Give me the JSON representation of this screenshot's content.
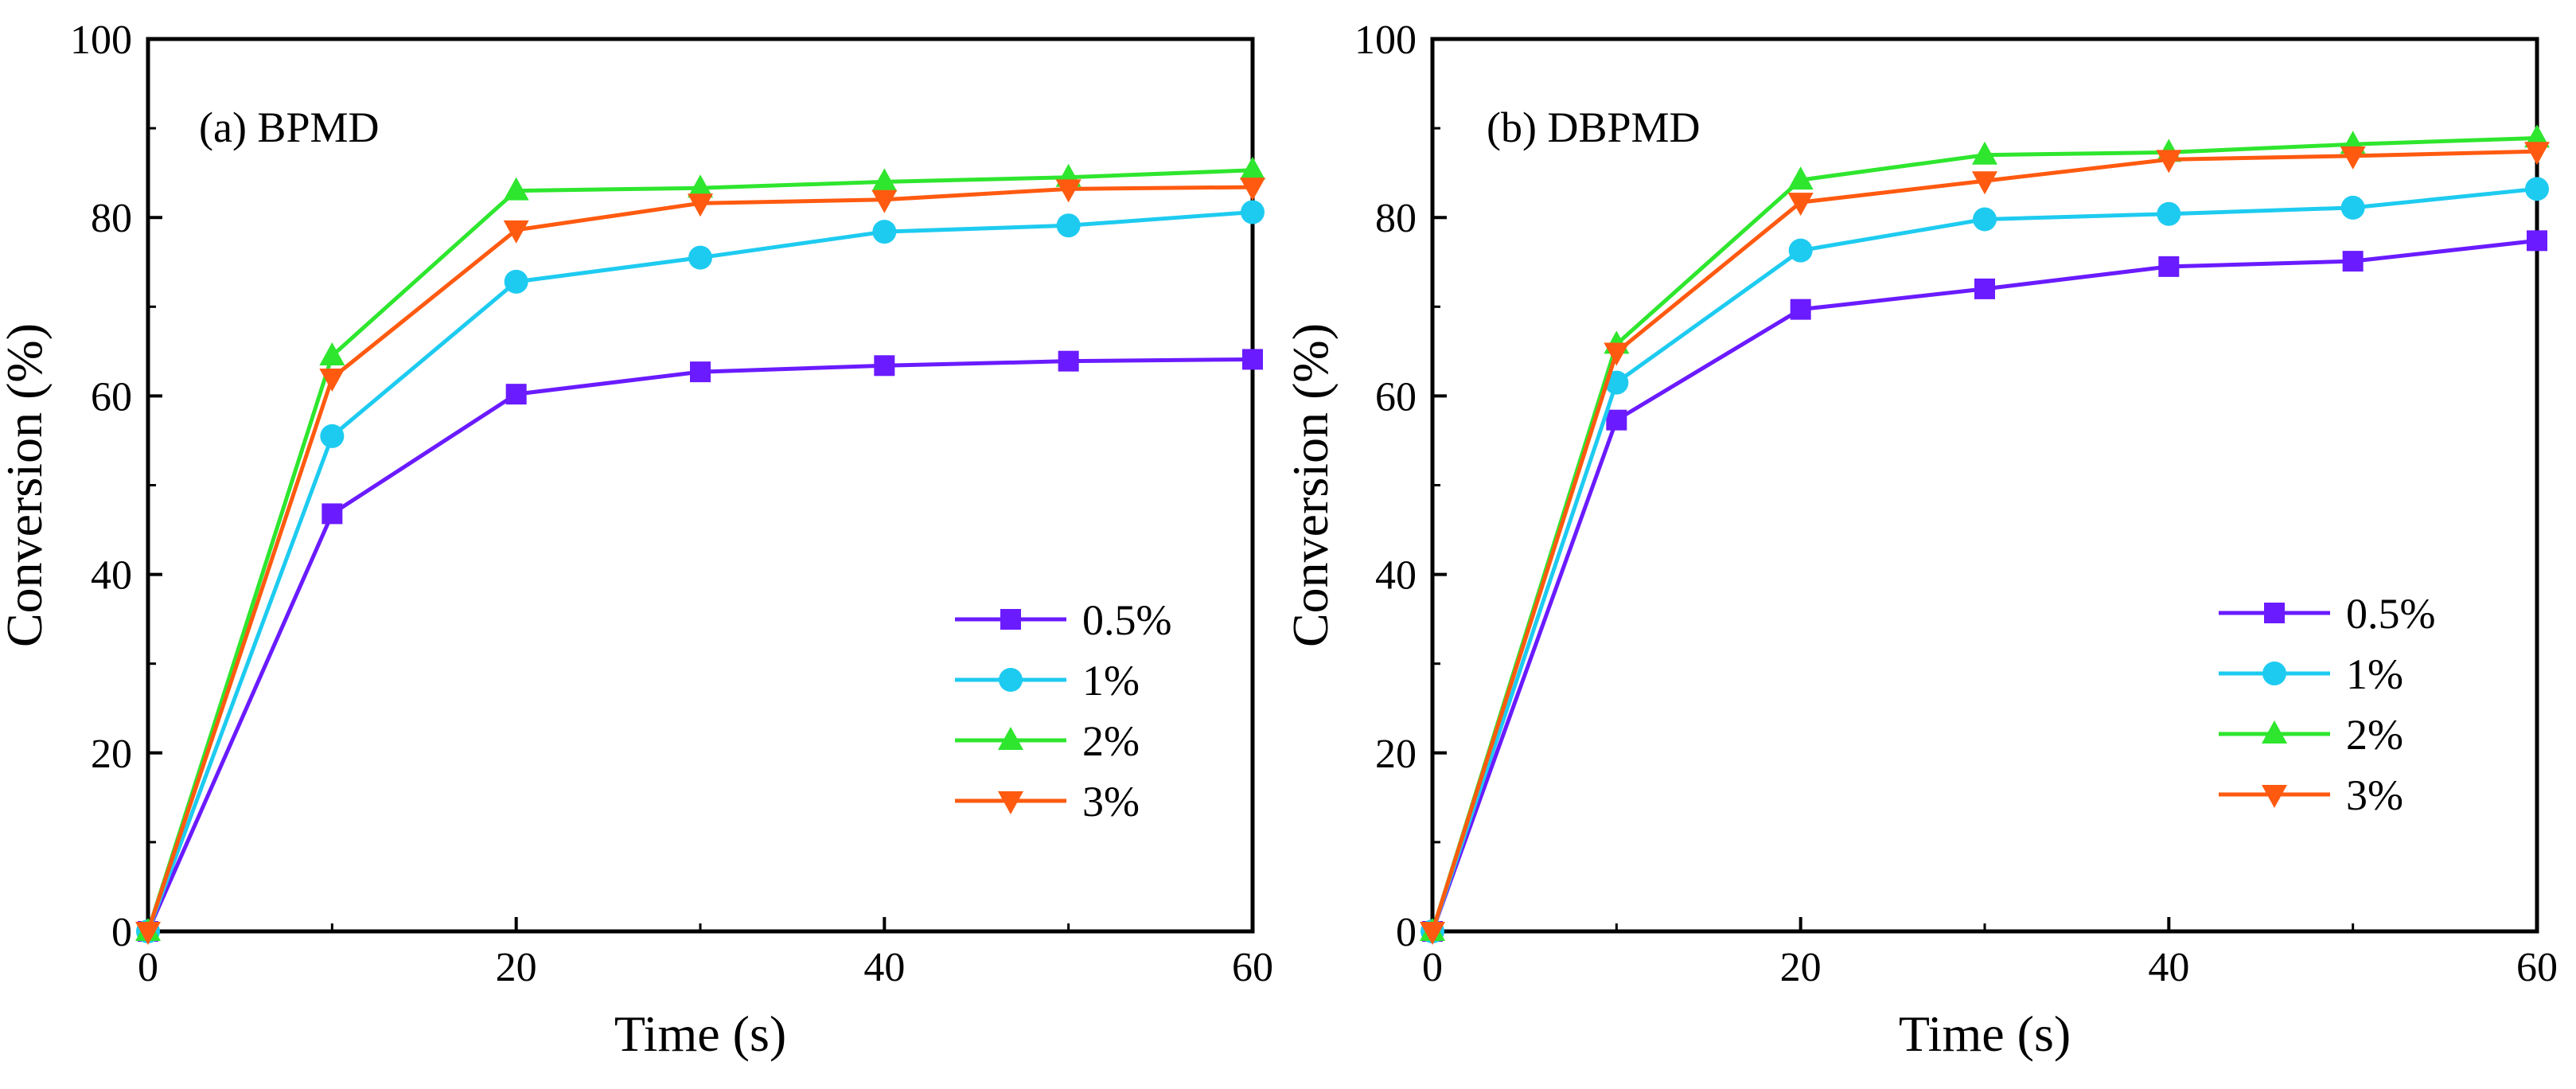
{
  "chart_data": [
    {
      "type": "line",
      "panel_label": "(a) BPMD",
      "xlabel": "Time (s)",
      "ylabel": "Conversion (%)",
      "xlim": [
        0,
        60
      ],
      "ylim": [
        0,
        100
      ],
      "xticks": [
        0,
        20,
        40,
        60
      ],
      "yticks": [
        0,
        20,
        40,
        60,
        80,
        100
      ],
      "legend_position": "bottom-right",
      "x": [
        0,
        10,
        20,
        30,
        40,
        50,
        60
      ],
      "series": [
        {
          "name": "0.5%",
          "color": "#6a1bff",
          "marker": "square",
          "values": [
            0,
            46.8,
            60.2,
            62.7,
            63.4,
            63.9,
            64.1
          ]
        },
        {
          "name": "1%",
          "color": "#1ecbf0",
          "marker": "circle",
          "values": [
            0,
            55.5,
            72.8,
            75.5,
            78.4,
            79.1,
            80.6
          ]
        },
        {
          "name": "2%",
          "color": "#2ee62e",
          "marker": "triangle-up",
          "values": [
            0,
            64.5,
            83.0,
            83.3,
            84.0,
            84.5,
            85.3
          ]
        },
        {
          "name": "3%",
          "color": "#ff5a10",
          "marker": "triangle-down",
          "values": [
            0,
            62.0,
            78.6,
            81.6,
            82.0,
            83.2,
            83.4
          ]
        }
      ]
    },
    {
      "type": "line",
      "panel_label": "(b) DBPMD",
      "xlabel": "Time (s)",
      "ylabel": "Conversion (%)",
      "xlim": [
        0,
        60
      ],
      "ylim": [
        0,
        100
      ],
      "xticks": [
        0,
        20,
        40,
        60
      ],
      "yticks": [
        0,
        20,
        40,
        60,
        80,
        100
      ],
      "legend_position": "bottom-right",
      "x": [
        0,
        10,
        20,
        30,
        40,
        50,
        60
      ],
      "series": [
        {
          "name": "0.5%",
          "color": "#6a1bff",
          "marker": "square",
          "values": [
            0,
            57.3,
            69.7,
            72.0,
            74.5,
            75.1,
            77.4
          ]
        },
        {
          "name": "1%",
          "color": "#1ecbf0",
          "marker": "circle",
          "values": [
            0,
            61.5,
            76.3,
            79.8,
            80.4,
            81.1,
            83.2
          ]
        },
        {
          "name": "2%",
          "color": "#2ee62e",
          "marker": "triangle-up",
          "values": [
            0,
            65.8,
            84.2,
            87.0,
            87.3,
            88.2,
            88.9
          ]
        },
        {
          "name": "3%",
          "color": "#ff5a10",
          "marker": "triangle-down",
          "values": [
            0,
            64.9,
            81.7,
            84.1,
            86.5,
            86.9,
            87.4
          ]
        }
      ]
    }
  ]
}
